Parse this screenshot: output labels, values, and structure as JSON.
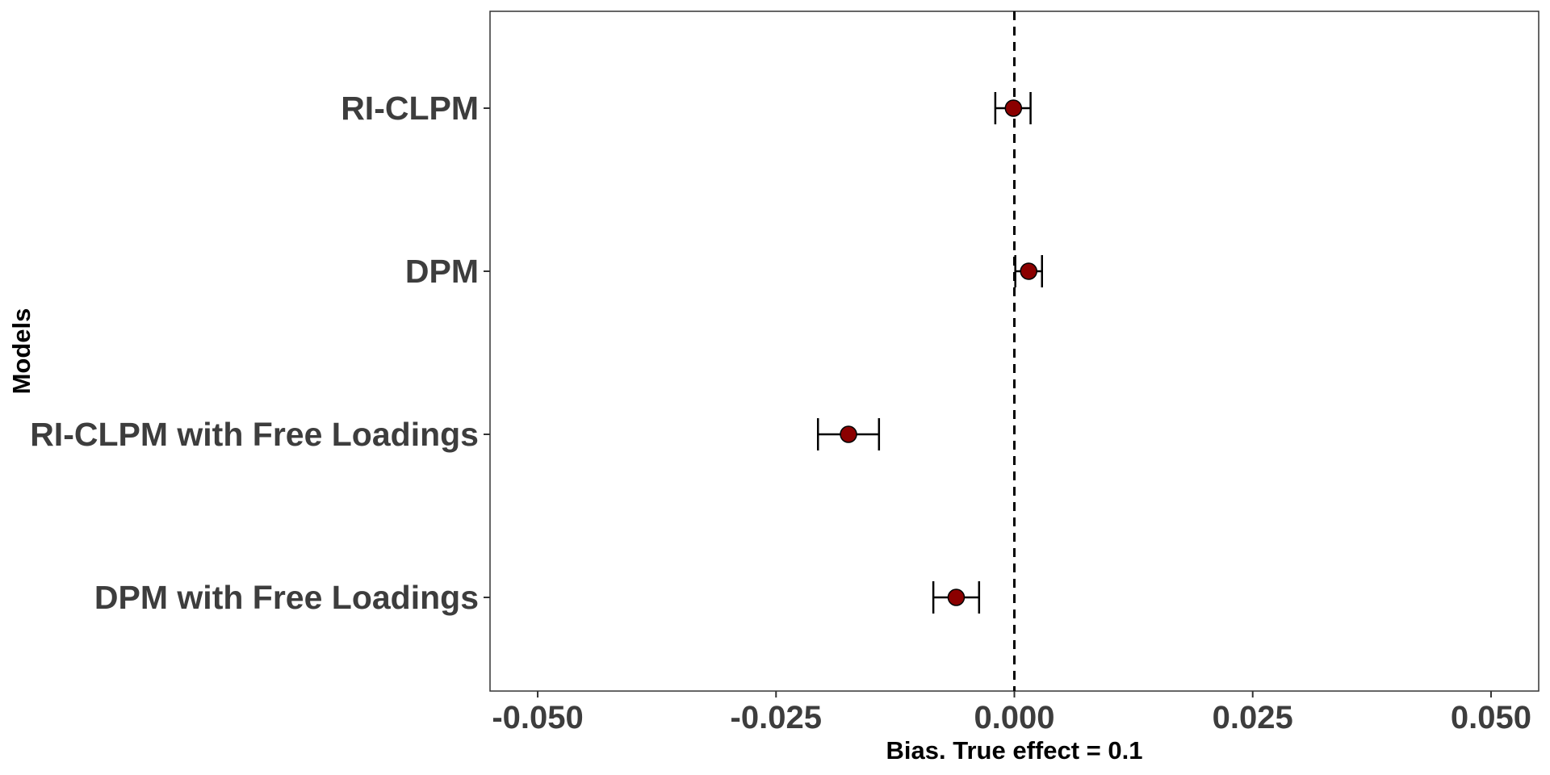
{
  "chart_data": {
    "type": "scatter",
    "xlabel": "Bias. True effect = 0.1",
    "ylabel": "Models",
    "xlim": [
      -0.055,
      0.055
    ],
    "x_ticks": [
      -0.05,
      -0.025,
      0.0,
      0.025,
      0.05
    ],
    "x_tick_labels": [
      "-0.050",
      "-0.025",
      "0.000",
      "0.025",
      "0.050"
    ],
    "reference_line": 0.0,
    "grid": false,
    "legend": "none",
    "point_color": "#8b0000",
    "errorbar_color": "#000000",
    "categories": [
      "RI-CLPM",
      "DPM",
      "RI-CLPM with Free Loadings",
      "DPM with Free Loadings"
    ],
    "points": [
      {
        "label": "RI-CLPM",
        "estimate": -0.0001,
        "lower": -0.002,
        "upper": 0.0017
      },
      {
        "label": "DPM",
        "estimate": 0.0015,
        "lower": 0.0001,
        "upper": 0.0029
      },
      {
        "label": "RI-CLPM with Free Loadings",
        "estimate": -0.0174,
        "lower": -0.0206,
        "upper": -0.0142
      },
      {
        "label": "DPM with Free Loadings",
        "estimate": -0.0061,
        "lower": -0.0085,
        "upper": -0.0037
      }
    ]
  }
}
